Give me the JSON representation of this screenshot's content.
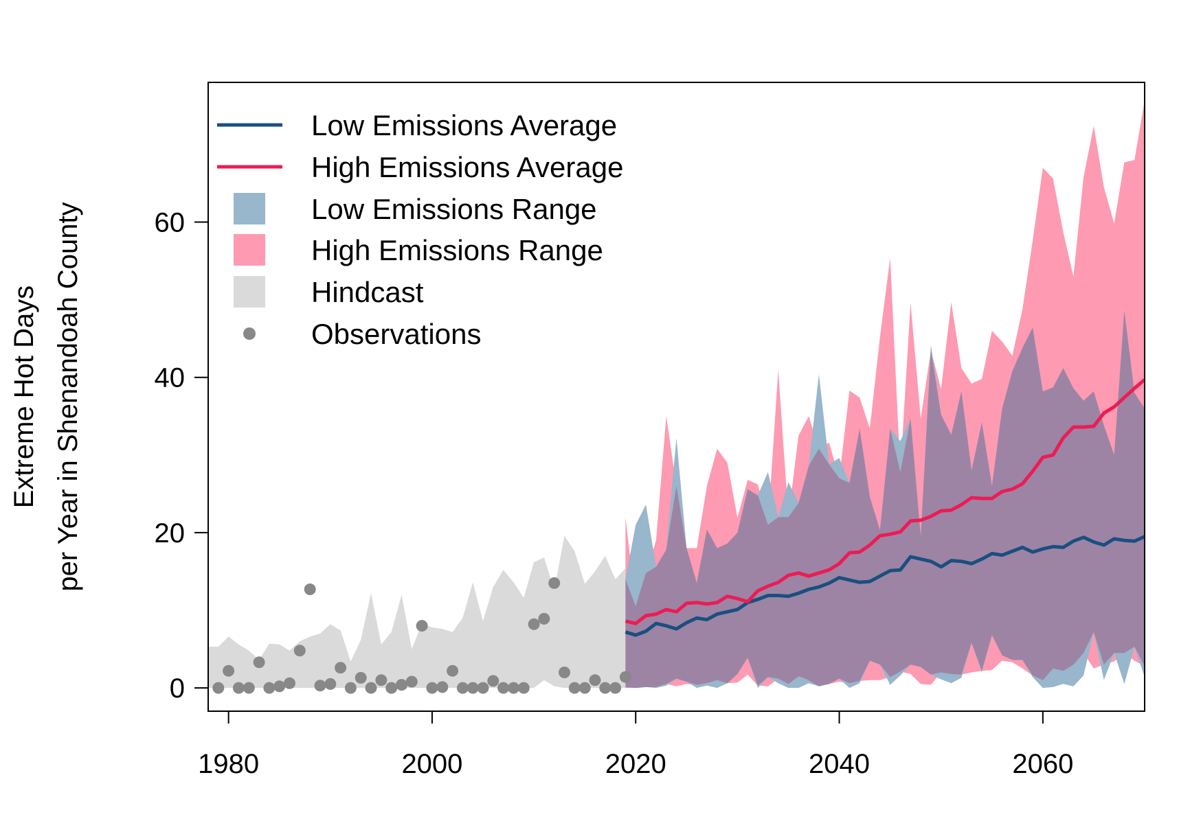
{
  "chart_data": {
    "type": "area",
    "title": "",
    "xlabel": "",
    "ylabel_lines": [
      "Extreme Hot Days",
      "per Year in Shenandoah County"
    ],
    "xlim": [
      1978,
      2070
    ],
    "ylim": [
      -3,
      78
    ],
    "x_ticks": [
      1980,
      2000,
      2020,
      2040,
      2060
    ],
    "y_ticks": [
      0,
      20,
      40,
      60
    ],
    "grid": false,
    "legend_position": "top-left",
    "colors": {
      "low_avg": "#1a4f80",
      "high_avg": "#ec1c55",
      "low_range": "#98b6cc",
      "high_range": "#fe9ab2",
      "overlap_range": "#9d84a4",
      "hindcast": "#dadada",
      "observations": "#888888"
    },
    "legend": [
      {
        "label": "Low Emissions Average",
        "kind": "line",
        "color_key": "low_avg"
      },
      {
        "label": "High Emissions Average",
        "kind": "line",
        "color_key": "high_avg"
      },
      {
        "label": "Low Emissions Range",
        "kind": "box",
        "color_key": "low_range"
      },
      {
        "label": "High Emissions Range",
        "kind": "box",
        "color_key": "high_range"
      },
      {
        "label": "Hindcast",
        "kind": "box",
        "color_key": "hindcast"
      },
      {
        "label": "Observations",
        "kind": "point",
        "color_key": "observations"
      }
    ],
    "hindcast": {
      "x": [
        1978,
        1979,
        1980,
        1981,
        1982,
        1983,
        1984,
        1985,
        1986,
        1987,
        1988,
        1989,
        1990,
        1991,
        1992,
        1993,
        1994,
        1995,
        1996,
        1997,
        1998,
        1999,
        2000,
        2001,
        2002,
        2003,
        2004,
        2005,
        2006,
        2007,
        2008,
        2009,
        2010,
        2011,
        2012,
        2013,
        2014,
        2015,
        2016,
        2017,
        2018,
        2019
      ],
      "upper": [
        5.3,
        5.3,
        6.6,
        5.6,
        4.8,
        3.6,
        5.7,
        5.6,
        4.8,
        6.0,
        6.6,
        7.0,
        8.2,
        7.4,
        3.4,
        6.2,
        12.2,
        5.6,
        7.2,
        12.0,
        5.0,
        8.3,
        7.8,
        7.6,
        7.2,
        9.0,
        13.6,
        8.6,
        13.0,
        15.2,
        13.6,
        11.6,
        16.2,
        16.8,
        12.6,
        19.6,
        17.6,
        13.4,
        15.0,
        17.0,
        14.0,
        15.4
      ],
      "lower": [
        0,
        0,
        0,
        0,
        0,
        0,
        0,
        0,
        0,
        0,
        0,
        0,
        0,
        0,
        0,
        0,
        0,
        0,
        0,
        0,
        0,
        0,
        0,
        0,
        0,
        0,
        0,
        0,
        0,
        0,
        0,
        0,
        0,
        1.0,
        0.2,
        0,
        0,
        0,
        0,
        0,
        0,
        0
      ]
    },
    "observations": {
      "x": [
        1979,
        1980,
        1981,
        1982,
        1983,
        1984,
        1985,
        1986,
        1987,
        1988,
        1989,
        1990,
        1991,
        1992,
        1993,
        1994,
        1995,
        1996,
        1997,
        1998,
        1999,
        2000,
        2001,
        2002,
        2003,
        2004,
        2005,
        2006,
        2007,
        2008,
        2009,
        2010,
        2011,
        2012,
        2013,
        2014,
        2015,
        2016,
        2017,
        2018,
        2019
      ],
      "y": [
        0,
        2.2,
        0,
        0,
        3.3,
        0,
        0.2,
        0.6,
        4.8,
        12.7,
        0.3,
        0.5,
        2.6,
        0,
        1.3,
        0,
        1.0,
        0,
        0.4,
        0.8,
        8.0,
        0,
        0.1,
        2.2,
        0,
        0,
        0,
        0.9,
        0,
        0,
        0,
        8.2,
        8.9,
        13.5,
        2.0,
        0,
        0,
        1.0,
        0,
        0,
        1.4
      ]
    },
    "x_future": [
      2019,
      2020,
      2021,
      2022,
      2023,
      2024,
      2025,
      2026,
      2027,
      2028,
      2029,
      2030,
      2031,
      2032,
      2033,
      2034,
      2035,
      2036,
      2037,
      2038,
      2039,
      2040,
      2041,
      2042,
      2043,
      2044,
      2045,
      2046,
      2047,
      2048,
      2049,
      2050,
      2051,
      2052,
      2053,
      2054,
      2055,
      2056,
      2057,
      2058,
      2059,
      2060,
      2061,
      2062,
      2063,
      2064,
      2065,
      2066,
      2067,
      2068,
      2069,
      2070
    ],
    "series": [
      {
        "name": "High Emissions Range",
        "upper": [
          22.0,
          10.5,
          14.8,
          19.0,
          35.0,
          26.0,
          18.0,
          18.0,
          26.0,
          30.8,
          29.0,
          21.9,
          26.8,
          26.2,
          21.0,
          41.0,
          22.0,
          32.5,
          35.0,
          30.8,
          31.6,
          27.0,
          38.3,
          37.4,
          33.4,
          45.2,
          55.4,
          27.8,
          49.6,
          34.7,
          43.5,
          38.5,
          49.7,
          41.2,
          39.2,
          39.8,
          46.0,
          44.6,
          42.8,
          48.8,
          57.6,
          67.0,
          65.6,
          58.7,
          53.0,
          65.8,
          72.4,
          64.5,
          59.8,
          67.7,
          68.0,
          75.7
        ],
        "lower": [
          0.1,
          0.0,
          0.1,
          0.1,
          0.5,
          0.2,
          0.5,
          0.4,
          0.6,
          1.0,
          0.6,
          0.7,
          1.7,
          0.3,
          0.2,
          1.2,
          0.5,
          1.5,
          1.0,
          0.2,
          0.5,
          0.8,
          0.6,
          0.9,
          1.0,
          1.0,
          1.4,
          2.1,
          1.8,
          0.5,
          0.4,
          2.0,
          1.8,
          1.7,
          2.0,
          2.2,
          2.3,
          3.5,
          3.3,
          2.5,
          1.6,
          1.0,
          2.5,
          2.2,
          3.0,
          4.5,
          2.5,
          3.0,
          3.4,
          4.5,
          3.5,
          2.8
        ]
      },
      {
        "name": "Low Emissions Range",
        "upper": [
          14.0,
          21.0,
          23.6,
          15.6,
          17.8,
          32.2,
          18.0,
          13.5,
          20.4,
          18.0,
          18.6,
          20.0,
          25.6,
          24.8,
          27.8,
          22.0,
          26.5,
          23.8,
          28.6,
          40.4,
          28.8,
          29.6,
          26.4,
          33.4,
          24.6,
          20.3,
          33.4,
          31.8,
          34.7,
          19.5,
          44.2,
          35.2,
          32.6,
          38.2,
          28.0,
          34.2,
          26.0,
          36.0,
          40.8,
          43.8,
          46.4,
          38.2,
          38.7,
          41.2,
          38.6,
          37.0,
          38.2,
          33.8,
          30.0,
          48.6,
          38.0,
          36.0
        ],
        "lower": [
          0.0,
          0.0,
          0.1,
          0.0,
          0.3,
          1.2,
          0.8,
          0.0,
          0.3,
          0.0,
          0.6,
          1.8,
          3.9,
          0.0,
          1.4,
          0.6,
          0.0,
          0.0,
          0.6,
          0.2,
          0.5,
          1.2,
          0.0,
          0.6,
          3.5,
          3.0,
          0.4,
          1.6,
          3.0,
          2.7,
          1.7,
          1.1,
          0.6,
          1.3,
          5.8,
          2.0,
          6.8,
          4.2,
          3.6,
          3.6,
          1.4,
          0.0,
          0.1,
          0.5,
          0.2,
          1.6,
          7.2,
          1.0,
          4.5,
          0.5,
          5.3,
          1.4
        ]
      },
      {
        "name": "Low Emissions Average",
        "values": [
          7.2,
          6.8,
          7.3,
          8.3,
          8.0,
          7.6,
          8.4,
          9.0,
          8.8,
          9.5,
          9.8,
          10.1,
          11.0,
          11.4,
          11.9,
          11.9,
          11.8,
          12.2,
          12.7,
          13.0,
          13.5,
          14.2,
          13.9,
          13.6,
          13.7,
          14.4,
          15.1,
          15.2,
          16.9,
          16.6,
          16.3,
          15.6,
          16.4,
          16.3,
          16.0,
          16.6,
          17.3,
          17.1,
          17.6,
          18.1,
          17.5,
          17.9,
          18.2,
          18.1,
          18.9,
          19.4,
          18.8,
          18.4,
          19.2,
          19.0,
          18.9,
          19.5
        ]
      },
      {
        "name": "High Emissions Average",
        "values": [
          8.6,
          8.3,
          9.3,
          9.5,
          10.1,
          9.8,
          10.9,
          11.0,
          10.8,
          11.0,
          11.8,
          11.5,
          11.1,
          12.5,
          13.1,
          13.6,
          14.5,
          14.8,
          14.4,
          14.8,
          15.2,
          16.0,
          17.4,
          17.5,
          18.4,
          19.6,
          19.8,
          20.1,
          21.5,
          21.6,
          22.1,
          22.8,
          22.9,
          23.6,
          24.5,
          24.4,
          24.4,
          25.3,
          25.6,
          26.3,
          27.9,
          29.7,
          30.0,
          32.2,
          33.6,
          33.6,
          33.7,
          35.4,
          36.2,
          37.4,
          38.6,
          39.7
        ]
      }
    ]
  }
}
